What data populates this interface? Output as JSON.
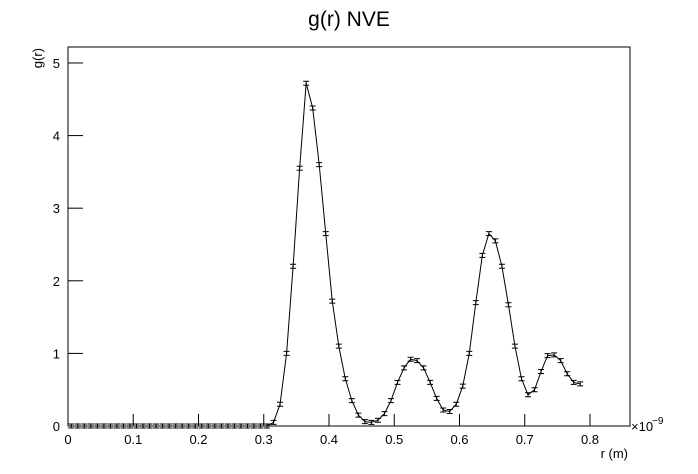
{
  "chart_data": {
    "type": "line",
    "title": "g(r) NVE",
    "x_label": "r (m)",
    "y_label": "g(r)",
    "x_exponent_base": "×10",
    "x_exponent": "−9",
    "x": [
      0.005,
      0.015,
      0.025,
      0.035,
      0.045,
      0.055,
      0.065,
      0.075,
      0.085,
      0.095,
      0.105,
      0.115,
      0.125,
      0.135,
      0.145,
      0.155,
      0.165,
      0.175,
      0.185,
      0.195,
      0.205,
      0.215,
      0.225,
      0.235,
      0.245,
      0.255,
      0.265,
      0.275,
      0.285,
      0.295,
      0.305,
      0.315,
      0.325,
      0.335,
      0.345,
      0.355,
      0.365,
      0.375,
      0.385,
      0.395,
      0.405,
      0.415,
      0.425,
      0.435,
      0.445,
      0.455,
      0.465,
      0.475,
      0.485,
      0.495,
      0.505,
      0.515,
      0.525,
      0.535,
      0.545,
      0.555,
      0.565,
      0.575,
      0.585,
      0.595,
      0.605,
      0.615,
      0.625,
      0.635,
      0.645,
      0.655,
      0.665,
      0.675,
      0.685,
      0.695,
      0.705,
      0.715,
      0.725,
      0.735,
      0.745,
      0.755,
      0.765,
      0.775,
      0.785
    ],
    "series": [
      {
        "name": "g(r)",
        "color": "#000000",
        "values": [
          0,
          0,
          0,
          0,
          0,
          0,
          0,
          0,
          0,
          0,
          0,
          0,
          0,
          0,
          0,
          0,
          0,
          0,
          0,
          0,
          0,
          0,
          0,
          0,
          0,
          0,
          0,
          0,
          0,
          0,
          0,
          0.05,
          0.3,
          1.0,
          2.2,
          3.55,
          4.72,
          4.38,
          3.6,
          2.65,
          1.72,
          1.1,
          0.65,
          0.35,
          0.15,
          0.06,
          0.05,
          0.08,
          0.17,
          0.35,
          0.6,
          0.8,
          0.92,
          0.9,
          0.8,
          0.6,
          0.38,
          0.22,
          0.2,
          0.3,
          0.55,
          1.0,
          1.7,
          2.35,
          2.65,
          2.55,
          2.2,
          1.67,
          1.1,
          0.65,
          0.43,
          0.5,
          0.75,
          0.97,
          0.98,
          0.9,
          0.72,
          0.6,
          0.58
        ]
      }
    ],
    "xlim": [
      0,
      0.8613
    ],
    "ylim": [
      0,
      5.22
    ],
    "xticks": [
      0,
      0.1,
      0.2,
      0.3,
      0.4,
      0.5,
      0.6,
      0.7,
      0.8
    ],
    "yticks": [
      0,
      1,
      2,
      3,
      4,
      5
    ],
    "grid": false
  }
}
